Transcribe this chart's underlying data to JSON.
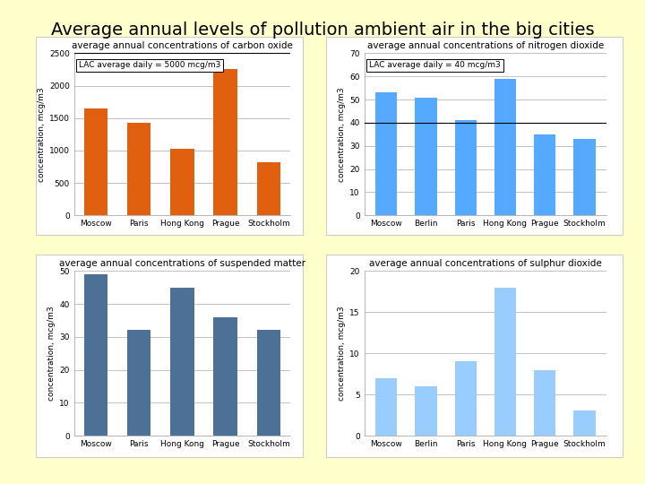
{
  "title": "Average annual levels of pollution ambient air in the big cities",
  "bg_color": "#FFFFCC",
  "panel_bg": "#FFFFFF",
  "chart1": {
    "title": "average annual concentrations of carbon oxide",
    "categories": [
      "Moscow",
      "Paris",
      "Hong Kong",
      "Prague",
      "Stockholm"
    ],
    "values": [
      1650,
      1430,
      1020,
      2250,
      820
    ],
    "bar_color": "#E06010",
    "ylabel": "concentration, mcg/m3",
    "ylim": [
      0,
      2500
    ],
    "yticks": [
      0,
      500,
      1000,
      1500,
      2000,
      2500
    ],
    "lac_label": "LAC average daily = 5000 mcg/m3",
    "lac_value": 2500
  },
  "chart2": {
    "title": "average annual concentrations of nitrogen dioxide",
    "categories": [
      "Moscow",
      "Berlin",
      "Paris",
      "Hong Kong",
      "Prague",
      "Stockholm"
    ],
    "values": [
      53,
      51,
      41,
      59,
      35,
      33
    ],
    "bar_color": "#55AAFF",
    "ylabel": "concentration, mcg/m3",
    "ylim": [
      0,
      70
    ],
    "yticks": [
      0,
      10,
      20,
      30,
      40,
      50,
      60,
      70
    ],
    "lac_label": "LAC average daily = 40 mcg/m3",
    "lac_value": 40
  },
  "chart3": {
    "title": "average annual concentrations of suspended matter",
    "categories": [
      "Moscow",
      "Paris",
      "Hong Kong",
      "Prague",
      "Stockholm"
    ],
    "values": [
      49,
      32,
      45,
      36,
      32
    ],
    "bar_color": "#4D7097",
    "ylabel": "concentration, mcg/m3",
    "ylim": [
      0,
      50
    ],
    "yticks": [
      0,
      10,
      20,
      30,
      40,
      50
    ]
  },
  "chart4": {
    "title": "average annual concentrations of sulphur dioxide",
    "categories": [
      "Moscow",
      "Berlin",
      "Paris",
      "Hong Kong",
      "Prague",
      "Stockholm"
    ],
    "values": [
      7,
      6,
      9,
      18,
      8,
      3
    ],
    "bar_color": "#99CCFF",
    "ylabel": "concentration, mcg/m3",
    "ylim": [
      0,
      20
    ],
    "yticks": [
      0,
      5,
      10,
      15,
      20
    ]
  }
}
